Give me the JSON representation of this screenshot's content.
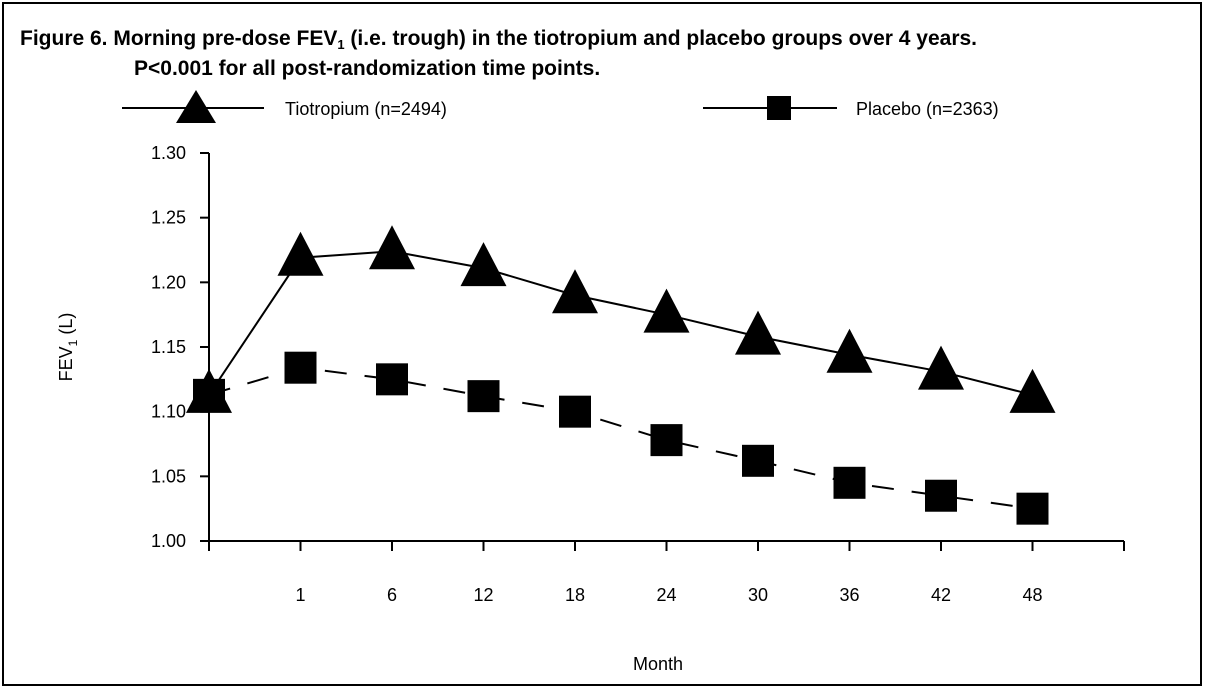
{
  "figure": {
    "title_line1_pre": "Figure 6. Morning pre-dose FEV",
    "title_line1_sub": "1",
    "title_line1_post": " (i.e. trough) in the tiotropium and placebo groups over 4 years.",
    "title_line2": "P<0.001 for all post-randomization time points."
  },
  "chart_data": {
    "type": "line",
    "xlabel": "Month",
    "ylabel_pre": "FEV",
    "ylabel_sub": "1",
    "ylabel_post": " (L)",
    "categories": [
      "0",
      "1",
      "6",
      "12",
      "18",
      "24",
      "30",
      "36",
      "42",
      "48"
    ],
    "x_tick_labels": [
      "",
      "1",
      "6",
      "12",
      "18",
      "24",
      "30",
      "36",
      "42",
      "48"
    ],
    "y_ticks": [
      "1.00",
      "1.05",
      "1.10",
      "1.15",
      "1.20",
      "1.25",
      "1.30"
    ],
    "ylim": [
      1.0,
      1.3
    ],
    "grid": false,
    "legend_position": "top",
    "series": [
      {
        "name": "Tiotropium (n=2494)",
        "marker": "triangle",
        "line_style": "solid",
        "values": [
          1.113,
          1.219,
          1.224,
          1.211,
          1.19,
          1.175,
          1.158,
          1.144,
          1.131,
          1.113
        ]
      },
      {
        "name": "Placebo (n=2363)",
        "marker": "square",
        "line_style": "dashed",
        "values": [
          1.113,
          1.134,
          1.125,
          1.112,
          1.1,
          1.078,
          1.062,
          1.045,
          1.035,
          1.025
        ]
      }
    ]
  }
}
